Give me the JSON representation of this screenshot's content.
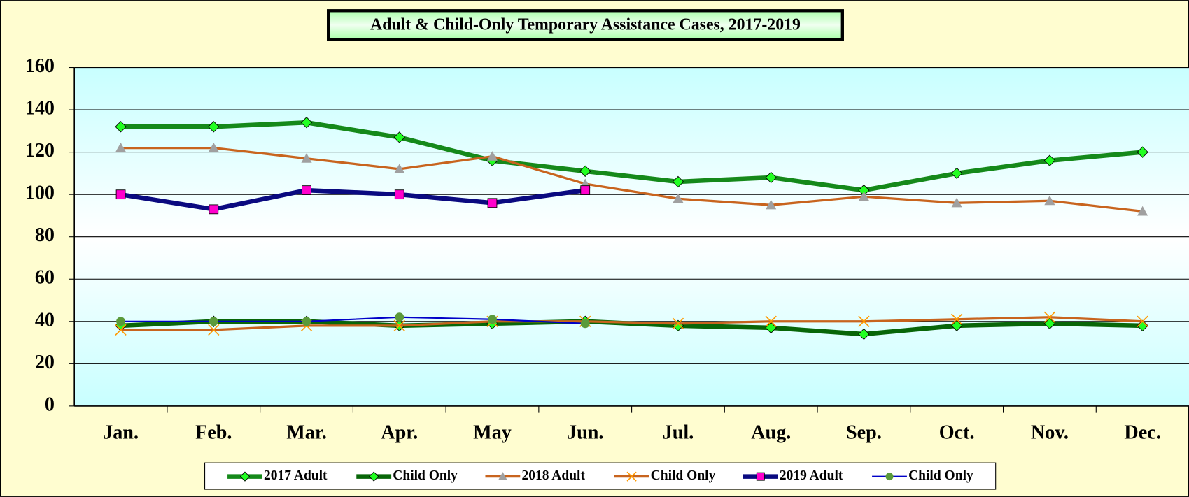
{
  "chart_data": {
    "type": "line",
    "title": "Adult & Child-Only Temporary Assistance Cases, 2017-2019",
    "categories": [
      "Jan.",
      "Feb.",
      "Mar.",
      "Apr.",
      "May",
      "Jun.",
      "Jul.",
      "Aug.",
      "Sep.",
      "Oct.",
      "Nov.",
      "Dec."
    ],
    "ylim": [
      0,
      160
    ],
    "yticks": [
      0,
      20,
      40,
      60,
      80,
      100,
      120,
      140,
      160
    ],
    "grid": true,
    "legend": "bottom",
    "series": [
      {
        "name": "2017 Adult",
        "color": "#15891a",
        "line_width": 6,
        "marker": "diamond",
        "marker_color": "#22ff22",
        "values": [
          132,
          132,
          134,
          127,
          116,
          111,
          106,
          108,
          102,
          110,
          116,
          120
        ]
      },
      {
        "name": "Child Only",
        "color": "#086608",
        "line_width": 6,
        "marker": "diamond",
        "marker_color": "#22ff22",
        "values": [
          38,
          40,
          40,
          38,
          39,
          40,
          38,
          37,
          34,
          38,
          39,
          38
        ]
      },
      {
        "name": "2018 Adult",
        "color": "#c8641e",
        "line_width": 3,
        "marker": "triangle",
        "marker_color": "#a0a0a0",
        "values": [
          122,
          122,
          117,
          112,
          118,
          105,
          98,
          95,
          99,
          96,
          97,
          92
        ]
      },
      {
        "name": "Child Only",
        "color": "#c8641e",
        "line_width": 3,
        "marker": "x",
        "marker_color": "#ff9900",
        "values": [
          36,
          36,
          38,
          38,
          40,
          40,
          39,
          40,
          40,
          41,
          42,
          40
        ]
      },
      {
        "name": "2019 Adult",
        "color": "#0a0a80",
        "line_width": 6,
        "marker": "square",
        "marker_color": "#ff00cc",
        "values": [
          100,
          93,
          102,
          100,
          96,
          102,
          null,
          null,
          null,
          null,
          null,
          null
        ]
      },
      {
        "name": "Child Only",
        "color": "#0000c8",
        "line_width": 2,
        "marker": "circle",
        "marker_color": "#5a9a3a",
        "values": [
          40,
          40,
          40,
          42,
          41,
          39,
          null,
          null,
          null,
          null,
          null,
          null
        ]
      }
    ]
  }
}
